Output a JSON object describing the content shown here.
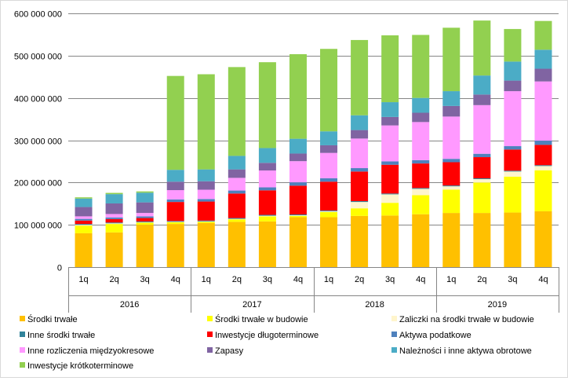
{
  "chart_data": {
    "type": "bar",
    "stacked": true,
    "title": "",
    "xlabel": "",
    "ylabel": "",
    "ylim": [
      0,
      600000000
    ],
    "y_ticks": [
      0,
      100000000,
      200000000,
      300000000,
      400000000,
      500000000,
      600000000
    ],
    "y_tick_labels": [
      "0",
      "100 000 000",
      "200 000 000",
      "300 000 000",
      "400 000 000",
      "500 000 000",
      "600 000 000"
    ],
    "grid": true,
    "legend_position": "bottom",
    "categories": [
      "1q",
      "2q",
      "3q",
      "4q",
      "1q",
      "2q",
      "3q",
      "4q",
      "1q",
      "2q",
      "3q",
      "4q",
      "1q",
      "2q",
      "3q",
      "4q"
    ],
    "year_groups": [
      {
        "label": "2016",
        "count": 4
      },
      {
        "label": "2017",
        "count": 4
      },
      {
        "label": "2018",
        "count": 4
      },
      {
        "label": "2019",
        "count": 4
      }
    ],
    "series": [
      {
        "name": "Środki trwałe",
        "color": "#ffc000",
        "values": [
          80000000,
          82000000,
          100000000,
          102000000,
          104000000,
          107000000,
          108000000,
          118000000,
          118000000,
          121000000,
          122000000,
          125000000,
          128000000,
          128000000,
          129000000,
          132000000
        ]
      },
      {
        "name": "Środki trwałe w budowie",
        "color": "#ffff00",
        "values": [
          18000000,
          20000000,
          5000000,
          4000000,
          3000000,
          6000000,
          12000000,
          3000000,
          12000000,
          18000000,
          30000000,
          45000000,
          55000000,
          72000000,
          85000000,
          97000000
        ]
      },
      {
        "name": "Zaliczki na środki trwałe w budowie",
        "color": "#fff5cc",
        "values": [
          2000000,
          1500000,
          1000000,
          1000000,
          1000000,
          1000000,
          1500000,
          1500000,
          2000000,
          15000000,
          20000000,
          15000000,
          8000000,
          8000000,
          12000000,
          10000000
        ]
      },
      {
        "name": "Inne środki trwałe",
        "color": "#31849b",
        "values": [
          2000000,
          2000000,
          2000000,
          2000000,
          2000000,
          2000000,
          2000000,
          2000000,
          2000000,
          2000000,
          2000000,
          2000000,
          2000000,
          2000000,
          2000000,
          2000000
        ]
      },
      {
        "name": "Inwestycje długoterminowe",
        "color": "#ff0000",
        "values": [
          8000000,
          8000000,
          8000000,
          45000000,
          45000000,
          58000000,
          58000000,
          68000000,
          68000000,
          70000000,
          68000000,
          58000000,
          55000000,
          50000000,
          50000000,
          48000000
        ]
      },
      {
        "name": "Aktywa podatkowe",
        "color": "#4f81bd",
        "values": [
          4000000,
          4000000,
          4000000,
          6000000,
          6000000,
          7000000,
          7000000,
          8000000,
          8000000,
          8000000,
          8000000,
          8000000,
          8000000,
          8000000,
          8000000,
          10000000
        ]
      },
      {
        "name": "Inne rozliczenia międzyokresowe",
        "color": "#ff99ff",
        "values": [
          6000000,
          8000000,
          8000000,
          22000000,
          22000000,
          30000000,
          40000000,
          50000000,
          60000000,
          70000000,
          85000000,
          90000000,
          100000000,
          115000000,
          130000000,
          140000000
        ]
      },
      {
        "name": "Zapasy",
        "color": "#8064a2",
        "values": [
          22000000,
          25000000,
          25000000,
          20000000,
          20000000,
          20000000,
          18000000,
          18000000,
          18000000,
          20000000,
          20000000,
          22000000,
          25000000,
          25000000,
          25000000,
          30000000
        ]
      },
      {
        "name": "Należności i inne aktywa obrotowe",
        "color": "#4bacc6",
        "values": [
          20000000,
          22000000,
          23000000,
          28000000,
          28000000,
          32000000,
          35000000,
          35000000,
          33000000,
          35000000,
          35000000,
          35000000,
          35000000,
          45000000,
          45000000,
          45000000
        ]
      },
      {
        "name": "Inwestycje krótkoterminowe",
        "color": "#92d050",
        "values": [
          3000000,
          3000000,
          3000000,
          222000000,
          225000000,
          210000000,
          203000000,
          200000000,
          195000000,
          178000000,
          158000000,
          149000000,
          150000000,
          130000000,
          77000000,
          68000000
        ]
      }
    ]
  }
}
